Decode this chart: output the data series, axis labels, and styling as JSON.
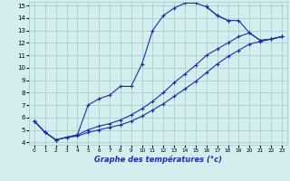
{
  "xlabel": "Graphe des températures (°c)",
  "bg_color": "#d4eef0",
  "grid_color": "#aacece",
  "line_color": "#1a2eaa",
  "xlim": [
    -0.5,
    23.5
  ],
  "ylim": [
    3.8,
    15.3
  ],
  "yticks": [
    4,
    5,
    6,
    7,
    8,
    9,
    10,
    11,
    12,
    13,
    14,
    15
  ],
  "xticks": [
    0,
    1,
    2,
    3,
    4,
    5,
    6,
    7,
    8,
    9,
    10,
    11,
    12,
    13,
    14,
    15,
    16,
    17,
    18,
    19,
    20,
    21,
    22,
    23
  ],
  "series": [
    {
      "x": [
        0,
        1,
        2,
        3,
        4,
        5,
        6,
        7,
        8,
        9,
        10,
        11,
        12,
        13,
        14,
        15,
        16,
        17,
        18,
        19,
        20,
        21,
        22,
        23
      ],
      "y": [
        5.7,
        4.8,
        4.2,
        4.4,
        4.6,
        7.0,
        7.5,
        7.8,
        8.5,
        8.5,
        10.3,
        13.0,
        14.2,
        14.8,
        15.2,
        15.2,
        14.9,
        14.2,
        13.8,
        null,
        null,
        null,
        null,
        null
      ]
    },
    {
      "x": [
        0,
        1,
        2,
        3,
        4,
        5,
        6,
        7,
        8,
        9,
        10,
        11,
        12,
        13,
        14,
        15,
        16,
        17,
        18,
        19,
        20,
        21,
        22,
        23
      ],
      "y": [
        5.7,
        4.8,
        4.2,
        4.4,
        4.6,
        5.0,
        5.3,
        5.5,
        5.8,
        6.2,
        6.7,
        7.3,
        8.0,
        8.8,
        9.5,
        10.2,
        11.0,
        11.5,
        12.0,
        12.5,
        12.8,
        12.2,
        12.3,
        12.5
      ]
    },
    {
      "x": [
        0,
        1,
        2,
        3,
        4,
        5,
        6,
        7,
        8,
        9,
        10,
        11,
        12,
        13,
        14,
        15,
        16,
        17,
        18,
        19,
        20,
        21,
        22,
        23
      ],
      "y": [
        5.7,
        4.8,
        4.2,
        4.4,
        4.5,
        4.8,
        5.0,
        5.2,
        5.4,
        5.7,
        6.1,
        6.6,
        7.1,
        7.7,
        8.3,
        8.9,
        9.6,
        10.3,
        10.9,
        11.4,
        11.9,
        12.1,
        12.3,
        12.5
      ]
    }
  ],
  "series2": [
    {
      "x": [
        16,
        17,
        18,
        19,
        20,
        21,
        22,
        23
      ],
      "y": [
        14.9,
        14.2,
        13.8,
        13.8,
        12.8,
        12.2,
        12.3,
        12.5
      ]
    }
  ]
}
